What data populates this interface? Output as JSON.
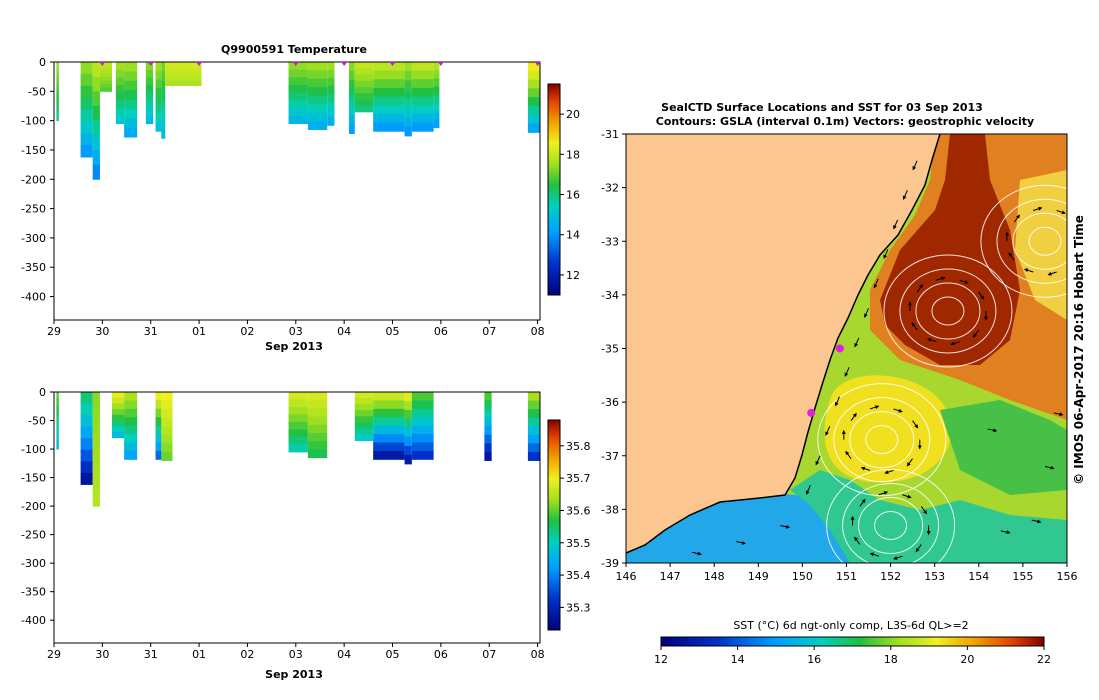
{
  "chart_data": [
    {
      "type": "heatmap",
      "title": "Q9900591  Temperature",
      "xlabel": "Sep 2013",
      "x_ticks": [
        "29",
        "30",
        "31",
        "01",
        "02",
        "03",
        "04",
        "05",
        "06",
        "07",
        "08"
      ],
      "x_range_days": [
        0,
        10.05
      ],
      "y_ticks": [
        "0",
        "-50",
        "-100",
        "-150",
        "-200",
        "-250",
        "-300",
        "-350",
        "-400"
      ],
      "y_range_m": [
        -440,
        0
      ],
      "colorbar_ticks": [
        "12",
        "14",
        "16",
        "18",
        "20"
      ],
      "colorbar_range": [
        11,
        21.5
      ],
      "profiles": [
        {
          "x0": 0.05,
          "x1": 0.1,
          "depth": 100,
          "surface": 17.5,
          "bottom": 15.6
        },
        {
          "x0": 0.55,
          "x1": 0.8,
          "depth": 162,
          "surface": 17.5,
          "bottom": 13.8
        },
        {
          "x0": 0.8,
          "x1": 0.95,
          "depth": 200,
          "surface": 18.0,
          "bottom": 13.5
        },
        {
          "x0": 0.95,
          "x1": 1.2,
          "depth": 50,
          "surface": 18.0,
          "bottom": 16.8
        },
        {
          "x0": 1.28,
          "x1": 1.45,
          "depth": 105,
          "surface": 17.6,
          "bottom": 15.0
        },
        {
          "x0": 1.45,
          "x1": 1.72,
          "depth": 128,
          "surface": 17.6,
          "bottom": 14.2
        },
        {
          "x0": 1.9,
          "x1": 2.05,
          "depth": 105,
          "surface": 17.4,
          "bottom": 14.6
        },
        {
          "x0": 2.1,
          "x1": 2.22,
          "depth": 118,
          "surface": 17.6,
          "bottom": 14.8
        },
        {
          "x0": 2.22,
          "x1": 2.3,
          "depth": 130,
          "surface": 17.2,
          "bottom": 14.6
        },
        {
          "x0": 2.3,
          "x1": 3.05,
          "depth": 40,
          "surface": 18.2,
          "bottom": 17.6
        },
        {
          "x0": 4.85,
          "x1": 5.25,
          "depth": 105,
          "surface": 17.5,
          "bottom": 14.5
        },
        {
          "x0": 5.25,
          "x1": 5.65,
          "depth": 115,
          "surface": 17.6,
          "bottom": 14.3
        },
        {
          "x0": 5.65,
          "x1": 5.8,
          "depth": 108,
          "surface": 17.6,
          "bottom": 14.4
        },
        {
          "x0": 6.1,
          "x1": 6.22,
          "depth": 122,
          "surface": 17.4,
          "bottom": 14.0
        },
        {
          "x0": 6.22,
          "x1": 6.6,
          "depth": 85,
          "surface": 18.0,
          "bottom": 15.8
        },
        {
          "x0": 6.6,
          "x1": 7.25,
          "depth": 118,
          "surface": 18.0,
          "bottom": 13.8
        },
        {
          "x0": 7.25,
          "x1": 7.4,
          "depth": 126,
          "surface": 17.6,
          "bottom": 13.8
        },
        {
          "x0": 7.4,
          "x1": 7.85,
          "depth": 118,
          "surface": 18.0,
          "bottom": 13.8
        },
        {
          "x0": 7.85,
          "x1": 7.97,
          "depth": 112,
          "surface": 17.8,
          "bottom": 14.0
        },
        {
          "x0": 9.8,
          "x1": 10.05,
          "depth": 120,
          "surface": 18.8,
          "bottom": 14.0
        }
      ]
    },
    {
      "type": "heatmap",
      "title": "",
      "xlabel": "Sep 2013",
      "x_ticks": [
        "29",
        "30",
        "31",
        "01",
        "02",
        "03",
        "04",
        "05",
        "06",
        "07",
        "08"
      ],
      "x_range_days": [
        0,
        10.05
      ],
      "y_ticks": [
        "0",
        "-50",
        "-100",
        "-150",
        "-200",
        "-250",
        "-300",
        "-350",
        "-400"
      ],
      "y_range_m": [
        -440,
        0
      ],
      "colorbar_ticks": [
        "35.3",
        "35.4",
        "35.5",
        "35.6",
        "35.7",
        "35.8"
      ],
      "colorbar_range": [
        35.23,
        35.88
      ],
      "profiles": [
        {
          "x0": 0.05,
          "x1": 0.1,
          "depth": 100,
          "surface": 35.6,
          "bottom": 35.45
        },
        {
          "x0": 0.55,
          "x1": 0.8,
          "depth": 162,
          "surface": 35.55,
          "bottom": 35.25
        },
        {
          "x0": 0.8,
          "x1": 0.95,
          "depth": 200,
          "surface": 35.62,
          "bottom": 35.65
        },
        {
          "x0": 1.2,
          "x1": 1.45,
          "depth": 80,
          "surface": 35.7,
          "bottom": 35.45
        },
        {
          "x0": 1.45,
          "x1": 1.72,
          "depth": 118,
          "surface": 35.65,
          "bottom": 35.42
        },
        {
          "x0": 2.1,
          "x1": 2.22,
          "depth": 118,
          "surface": 35.7,
          "bottom": 35.35
        },
        {
          "x0": 2.22,
          "x1": 2.45,
          "depth": 120,
          "surface": 35.7,
          "bottom": 35.6
        },
        {
          "x0": 4.85,
          "x1": 5.25,
          "depth": 105,
          "surface": 35.68,
          "bottom": 35.5
        },
        {
          "x0": 5.25,
          "x1": 5.65,
          "depth": 115,
          "surface": 35.68,
          "bottom": 35.55
        },
        {
          "x0": 6.22,
          "x1": 6.6,
          "depth": 85,
          "surface": 35.68,
          "bottom": 35.48
        },
        {
          "x0": 6.6,
          "x1": 7.25,
          "depth": 118,
          "surface": 35.68,
          "bottom": 35.25
        },
        {
          "x0": 7.25,
          "x1": 7.4,
          "depth": 126,
          "surface": 35.7,
          "bottom": 35.25
        },
        {
          "x0": 7.4,
          "x1": 7.85,
          "depth": 118,
          "surface": 35.6,
          "bottom": 35.3
        },
        {
          "x0": 8.9,
          "x1": 9.05,
          "depth": 120,
          "surface": 35.6,
          "bottom": 35.25
        },
        {
          "x0": 9.8,
          "x1": 10.05,
          "depth": 120,
          "surface": 35.65,
          "bottom": 35.3
        }
      ]
    },
    {
      "type": "heatmap",
      "title": "SealCTD Surface Locations and SST for 03 Sep 2013",
      "subtitle": "Contours: GSLA (interval 0.1m) Vectors: geostrophic velocity",
      "x_ticks": [
        "146",
        "147",
        "148",
        "149",
        "150",
        "151",
        "152",
        "153",
        "154",
        "155",
        "156"
      ],
      "x_range_lon": [
        146,
        156
      ],
      "y_ticks": [
        "-31",
        "-32",
        "-33",
        "-34",
        "-35",
        "-36",
        "-37",
        "-38",
        "-39"
      ],
      "y_range_lat": [
        -39,
        -31
      ],
      "colorbar_label": "SST (°C) 6d ngt-only comp, L3S-6d QL>=2",
      "colorbar_ticks": [
        "12",
        "14",
        "16",
        "18",
        "20",
        "22"
      ],
      "colorbar_range": [
        12,
        22
      ],
      "side_label": "© IMOS 06-Apr-2017 20:16 Hobart Time",
      "eddies": [
        {
          "lon": 153.3,
          "lat": -34.3,
          "sst": 20.8
        },
        {
          "lon": 151.8,
          "lat": -36.7,
          "sst": 18.6
        },
        {
          "lon": 155.5,
          "lat": -33.0,
          "sst": 18.8
        },
        {
          "lon": 152.0,
          "lat": -38.3,
          "sst": 16.5
        }
      ],
      "seal_locations": [
        {
          "lon": 150.85,
          "lat": -35.0
        },
        {
          "lon": 150.2,
          "lat": -36.2
        }
      ]
    }
  ]
}
